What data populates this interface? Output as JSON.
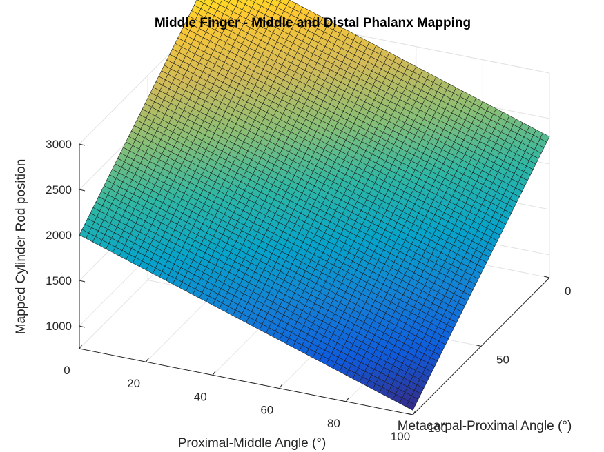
{
  "chart_data": {
    "type": "surface",
    "title": "Middle Finger - Middle and Distal Phalanx Mapping",
    "xlabel": "Proximal-Middle Angle (°)",
    "ylabel": "Metacarpal-Proximal Angle (°)",
    "zlabel": "Mapped Cylinder Rod position",
    "xlim": [
      0,
      100
    ],
    "ylim": [
      0,
      100
    ],
    "zlim": [
      750,
      3000
    ],
    "x_ticks": [
      0,
      20,
      40,
      60,
      80,
      100
    ],
    "y_ticks": [
      0,
      50,
      100
    ],
    "z_ticks": [
      1000,
      1500,
      2000,
      2500,
      3000
    ],
    "x_tick_labels": [
      "0",
      "20",
      "40",
      "60",
      "80",
      "100"
    ],
    "y_tick_labels": [
      "0",
      "50",
      "100"
    ],
    "z_tick_labels": [
      "1000",
      "1500",
      "2000",
      "2500",
      "3000"
    ],
    "grid": true,
    "colormap": "parula",
    "colormap_stops": [
      "#352a87",
      "#0f5cdd",
      "#1481d6",
      "#06a4ca",
      "#2eb7a4",
      "#87bf77",
      "#d1bb59",
      "#fec832",
      "#f9fb0e"
    ],
    "mesh_divisions": [
      50,
      50
    ],
    "corner_values": [
      {
        "x": 0,
        "y": 0,
        "z": 3500
      },
      {
        "x": 100,
        "y": 0,
        "z": 2300
      },
      {
        "x": 0,
        "y": 100,
        "z": 2000
      },
      {
        "x": 100,
        "y": 100,
        "z": 800
      }
    ]
  }
}
